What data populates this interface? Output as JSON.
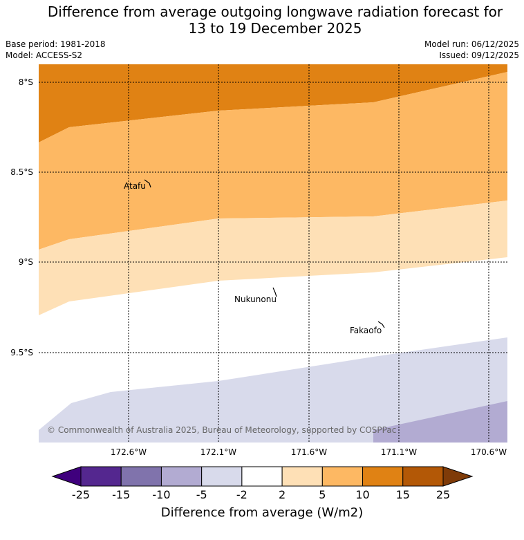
{
  "header": {
    "title_line1": "Difference from average outgoing longwave radiation forecast for",
    "title_line2": "13 to 19 December 2025",
    "base_period": "Base period: 1981-2018",
    "model": "Model: ACCESS-S2",
    "model_run": "Model run: 06/12/2025",
    "issued": "Issued: 09/12/2025"
  },
  "map": {
    "lat_labels": [
      "8°S",
      "8.5°S",
      "9°S",
      "9.5°S"
    ],
    "lon_labels": [
      "172.6°W",
      "172.1°W",
      "171.6°W",
      "171.1°W",
      "170.6°W"
    ],
    "places": [
      "Atafu",
      "Nukunonu",
      "Fakaofo"
    ],
    "copyright": "© Commonwealth of Australia 2025, Bureau of Meteorology, supported by COSPPac"
  },
  "legend": {
    "ticks": [
      "-25",
      "-15",
      "-10",
      "-5",
      "-2",
      "2",
      "5",
      "10",
      "15",
      "25"
    ],
    "colors": [
      "#3f007d",
      "#54278f",
      "#8073ac",
      "#b2abd2",
      "#d8daeb",
      "#ffffff",
      "#fee0b6",
      "#fdb863",
      "#e08214",
      "#b35806",
      "#7f3b08"
    ],
    "title": "Difference from average (W/m2)"
  }
}
